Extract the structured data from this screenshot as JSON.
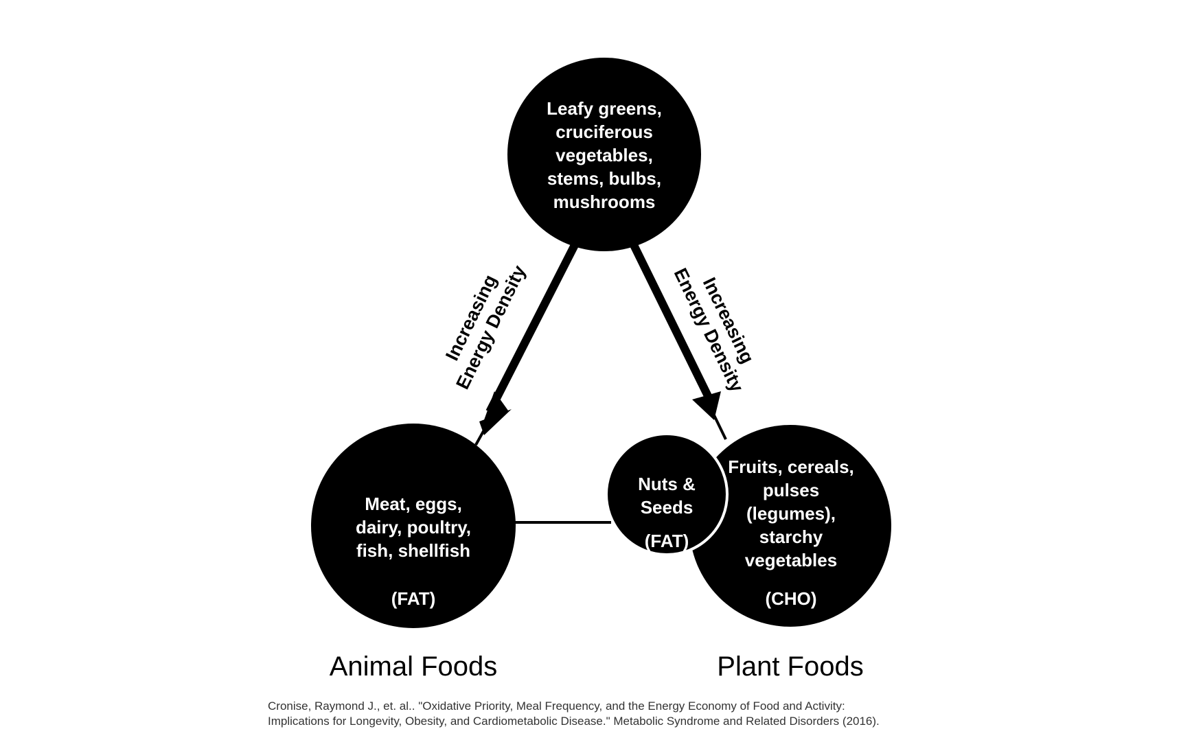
{
  "nodes": {
    "top": {
      "lines": [
        "Leafy greens,",
        "cruciferous",
        "vegetables,",
        "stems, bulbs,",
        "mushrooms"
      ]
    },
    "animal": {
      "lines": [
        "Meat, eggs,",
        "dairy, poultry,",
        "fish, shellfish"
      ],
      "tag": "(FAT)"
    },
    "plant": {
      "lines": [
        "Fruits, cereals,",
        "pulses",
        "(legumes),",
        "starchy",
        "vegetables"
      ],
      "tag": "(CHO)"
    },
    "nuts": {
      "lines": [
        "Nuts &",
        "Seeds"
      ],
      "tag": "(FAT)"
    }
  },
  "arrows": {
    "left": {
      "lines": [
        "Increasing",
        "Energy Density"
      ]
    },
    "right": {
      "lines": [
        "Increasing",
        "Energy Density"
      ]
    }
  },
  "labels": {
    "animal_foods": "Animal Foods",
    "plant_foods": "Plant Foods"
  },
  "citation": {
    "line1": "Cronise, Raymond J., et. al.. \"Oxidative Priority, Meal Frequency, and the Energy Economy of Food and Activity:",
    "line2": "Implications for Longevity, Obesity, and Cardiometabolic Disease.\" Metabolic Syndrome and Related Disorders (2016)."
  },
  "colors": {
    "circle_fill": "#000000",
    "circle_text": "#ffffff",
    "line": "#000000",
    "background": "#ffffff"
  }
}
